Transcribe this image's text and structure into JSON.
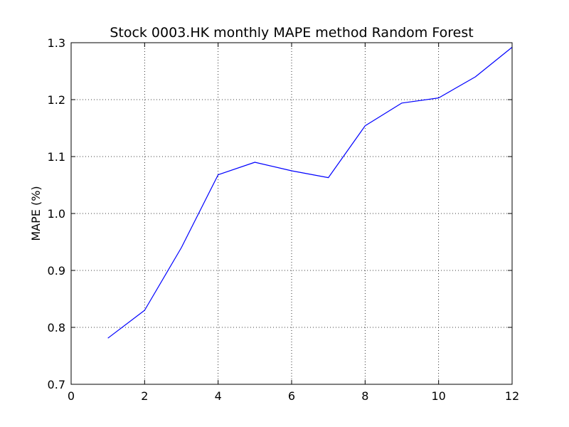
{
  "chart_data": {
    "type": "line",
    "title": "Stock 0003.HK monthly MAPE method Random Forest",
    "xlabel": "",
    "ylabel": "MAPE (%)",
    "xlim": [
      0,
      12
    ],
    "ylim": [
      0.7,
      1.3
    ],
    "x_ticks": [
      0,
      2,
      4,
      6,
      8,
      10,
      12
    ],
    "x_tick_labels": [
      "0",
      "2",
      "4",
      "6",
      "8",
      "10",
      "12"
    ],
    "y_ticks": [
      0.7,
      0.8,
      0.9,
      1.0,
      1.1,
      1.2,
      1.3
    ],
    "y_tick_labels": [
      "0.7",
      "0.8",
      "0.9",
      "1.0",
      "1.1",
      "1.2",
      "1.3"
    ],
    "grid": true,
    "series": [
      {
        "color": "#0000ff",
        "x": [
          1,
          2,
          3,
          4,
          5,
          6,
          7,
          8,
          9,
          10,
          11,
          12
        ],
        "y": [
          0.781,
          0.83,
          0.94,
          1.068,
          1.09,
          1.075,
          1.063,
          1.154,
          1.194,
          1.203,
          1.24,
          1.292
        ]
      }
    ]
  }
}
